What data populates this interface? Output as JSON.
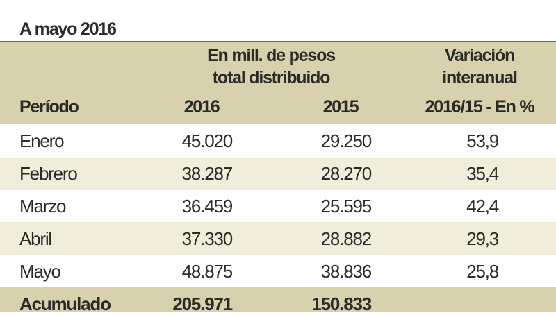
{
  "title": "A mayo 2016",
  "header": {
    "group": [
      "En mill. de pesos",
      "total distribuido"
    ],
    "periodo": "Período",
    "y2016": "2016",
    "y2015": "2015",
    "variation": [
      "Variación",
      "interanual",
      "2016/15 - En %"
    ]
  },
  "rows": [
    {
      "periodo": "Enero",
      "v2016": "45.020",
      "v2015": "29.250",
      "var": "53,9"
    },
    {
      "periodo": "Febrero",
      "v2016": "38.287",
      "v2015": "28.270",
      "var": "35,4"
    },
    {
      "periodo": "Marzo",
      "v2016": "36.459",
      "v2015": "25.595",
      "var": "42,4"
    },
    {
      "periodo": "Abril",
      "v2016": "37.330",
      "v2015": "28.882",
      "var": "29,3"
    },
    {
      "periodo": "Mayo",
      "v2016": "48.875",
      "v2015": "38.836",
      "var": "25,8"
    }
  ],
  "total": {
    "periodo": "Acumulado",
    "v2016": "205.971",
    "v2015": "150.833"
  },
  "colors": {
    "header_bg": "#d8d1ae",
    "alt_row_bg": "#f1eddb"
  }
}
